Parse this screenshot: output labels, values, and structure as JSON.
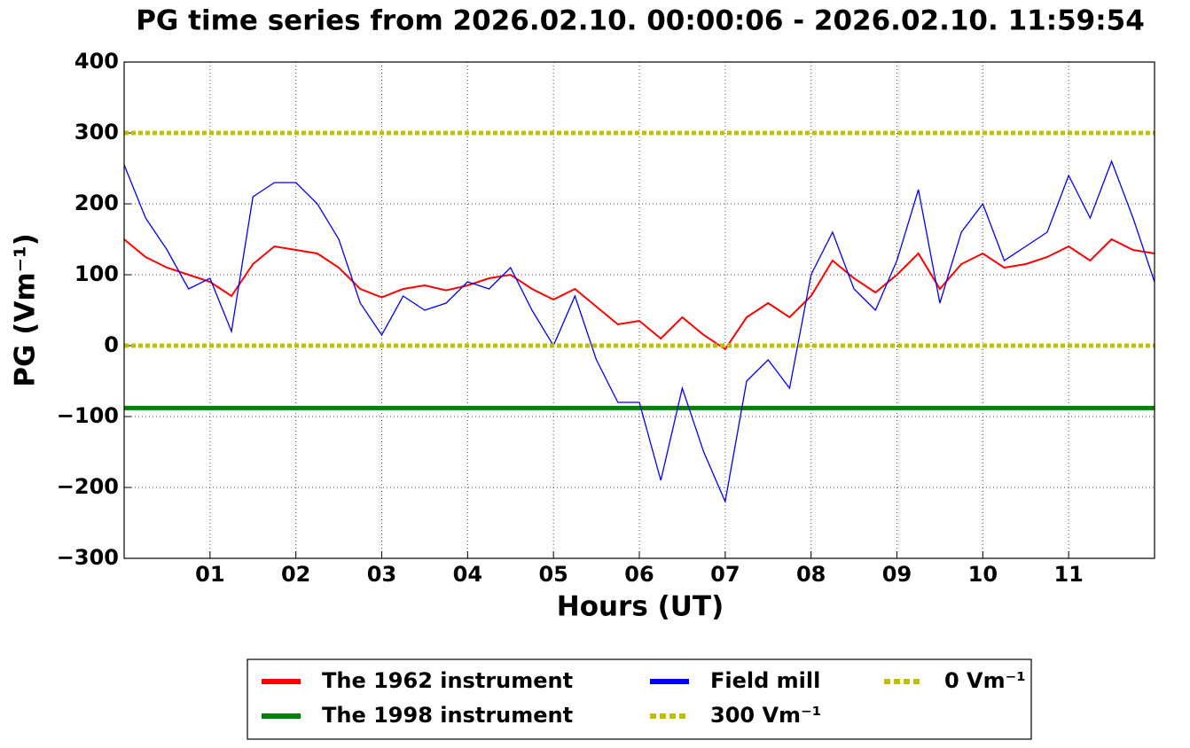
{
  "chart_data": {
    "type": "line",
    "title": "PG time series from 2026.02.10. 00:00:06 - 2026.02.10. 11:59:54",
    "xlabel": "Hours (UT)",
    "ylabel": "PG (Vm⁻¹)",
    "xlim": [
      0,
      12
    ],
    "ylim": [
      -300,
      400
    ],
    "xticks": [
      {
        "value": 1,
        "label": "01"
      },
      {
        "value": 2,
        "label": "02"
      },
      {
        "value": 3,
        "label": "03"
      },
      {
        "value": 4,
        "label": "04"
      },
      {
        "value": 5,
        "label": "05"
      },
      {
        "value": 6,
        "label": "06"
      },
      {
        "value": 7,
        "label": "07"
      },
      {
        "value": 8,
        "label": "08"
      },
      {
        "value": 9,
        "label": "09"
      },
      {
        "value": 10,
        "label": "10"
      },
      {
        "value": 11,
        "label": "11"
      }
    ],
    "yticks": [
      {
        "value": -300,
        "label": "−300"
      },
      {
        "value": -200,
        "label": "−200"
      },
      {
        "value": -100,
        "label": "−100"
      },
      0,
      100,
      200,
      300,
      400
    ],
    "grid": true,
    "legend": "bottom",
    "series": [
      {
        "name": "The 1962 instrument",
        "color": "#ff0000",
        "x": [
          0,
          0.25,
          0.5,
          0.75,
          1,
          1.25,
          1.5,
          1.75,
          2,
          2.25,
          2.5,
          2.75,
          3,
          3.25,
          3.5,
          3.75,
          4,
          4.25,
          4.5,
          4.75,
          5,
          5.25,
          5.5,
          5.75,
          6,
          6.25,
          6.5,
          6.75,
          7,
          7.25,
          7.5,
          7.75,
          8,
          8.25,
          8.5,
          8.75,
          9,
          9.25,
          9.5,
          9.75,
          10,
          10.25,
          10.5,
          10.75,
          11,
          11.25,
          11.5,
          11.75,
          12
        ],
        "values": [
          150,
          125,
          110,
          100,
          90,
          70,
          115,
          140,
          135,
          130,
          110,
          80,
          68,
          80,
          85,
          78,
          85,
          95,
          100,
          80,
          65,
          80,
          55,
          30,
          35,
          10,
          40,
          15,
          -5,
          40,
          60,
          40,
          70,
          120,
          95,
          75,
          100,
          130,
          80,
          115,
          130,
          110,
          115,
          125,
          140,
          120,
          150,
          135,
          130
        ]
      },
      {
        "name": "The 1998 instrument",
        "color": "#008000",
        "x": [
          0,
          12
        ],
        "values": [
          -88,
          -88
        ]
      },
      {
        "name": "Field mill",
        "color": "#0000ff",
        "x": [
          0,
          0.25,
          0.5,
          0.75,
          1,
          1.25,
          1.5,
          1.75,
          2,
          2.25,
          2.5,
          2.75,
          3,
          3.25,
          3.5,
          3.75,
          4,
          4.25,
          4.5,
          4.75,
          5,
          5.25,
          5.5,
          5.75,
          6,
          6.25,
          6.5,
          6.75,
          7,
          7.25,
          7.5,
          7.75,
          8,
          8.25,
          8.5,
          8.75,
          9,
          9.25,
          9.5,
          9.75,
          10,
          10.25,
          10.5,
          10.75,
          11,
          11.25,
          11.5,
          11.75,
          12
        ],
        "values": [
          255,
          180,
          135,
          80,
          95,
          20,
          210,
          230,
          230,
          200,
          150,
          60,
          15,
          70,
          50,
          60,
          90,
          80,
          110,
          50,
          0,
          70,
          -20,
          -80,
          -80,
          -190,
          -60,
          -150,
          -220,
          -50,
          -20,
          -60,
          100,
          160,
          80,
          50,
          120,
          220,
          60,
          160,
          200,
          120,
          140,
          160,
          240,
          180,
          260,
          180,
          90
        ]
      }
    ],
    "hlines": [
      {
        "name": "300 Vm⁻¹",
        "value": 300,
        "color": "#bfbf00"
      },
      {
        "name": "0 Vm⁻¹",
        "value": 0,
        "color": "#bfbf00"
      }
    ]
  }
}
